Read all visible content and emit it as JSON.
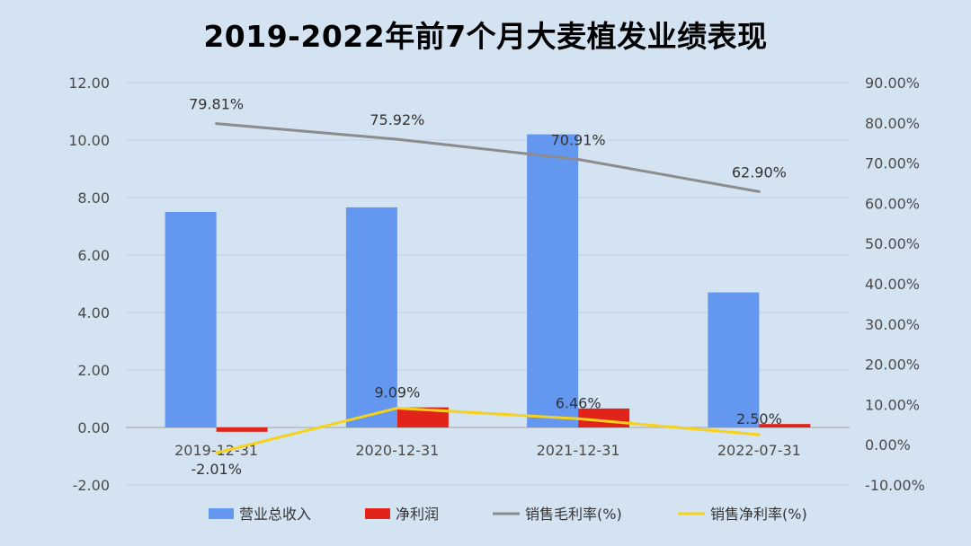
{
  "chart_data": {
    "type": "bar",
    "title": "2019-2022年前7个月大麦植发业绩表现",
    "categories": [
      "2019-12-31",
      "2020-12-31",
      "2021-12-31",
      "2022-07-31"
    ],
    "y_left": {
      "min": -2,
      "max": 12,
      "ticks": [
        "-2.00",
        "0.00",
        "2.00",
        "4.00",
        "6.00",
        "8.00",
        "10.00",
        "12.00"
      ]
    },
    "y_right": {
      "min": -10,
      "max": 90,
      "ticks": [
        "-10.00%",
        "0.00%",
        "10.00%",
        "20.00%",
        "30.00%",
        "40.00%",
        "50.00%",
        "60.00%",
        "70.00%",
        "80.00%",
        "90.00%"
      ]
    },
    "grid": true,
    "legend_position": "bottom",
    "series": [
      {
        "name": "营业总收入",
        "kind": "bar",
        "axis": "left",
        "color": "#6497f0",
        "values": [
          7.5,
          7.66,
          10.2,
          4.7
        ]
      },
      {
        "name": "净利润",
        "kind": "bar",
        "axis": "left",
        "color": "#e2231a",
        "values": [
          -0.15,
          0.7,
          0.66,
          0.12
        ]
      },
      {
        "name": "销售毛利率(%)",
        "kind": "line",
        "axis": "right",
        "color": "#8c8c8c",
        "values": [
          79.81,
          75.92,
          70.91,
          62.9
        ],
        "labels": [
          "79.81%",
          "75.92%",
          "70.91%",
          "62.90%"
        ]
      },
      {
        "name": "销售净利率(%)",
        "kind": "line",
        "axis": "right",
        "color": "#f7d21a",
        "values": [
          -2.01,
          9.09,
          6.46,
          2.5
        ],
        "labels": [
          "-2.01%",
          "9.09%",
          "6.46%",
          "2.50%"
        ]
      }
    ]
  }
}
